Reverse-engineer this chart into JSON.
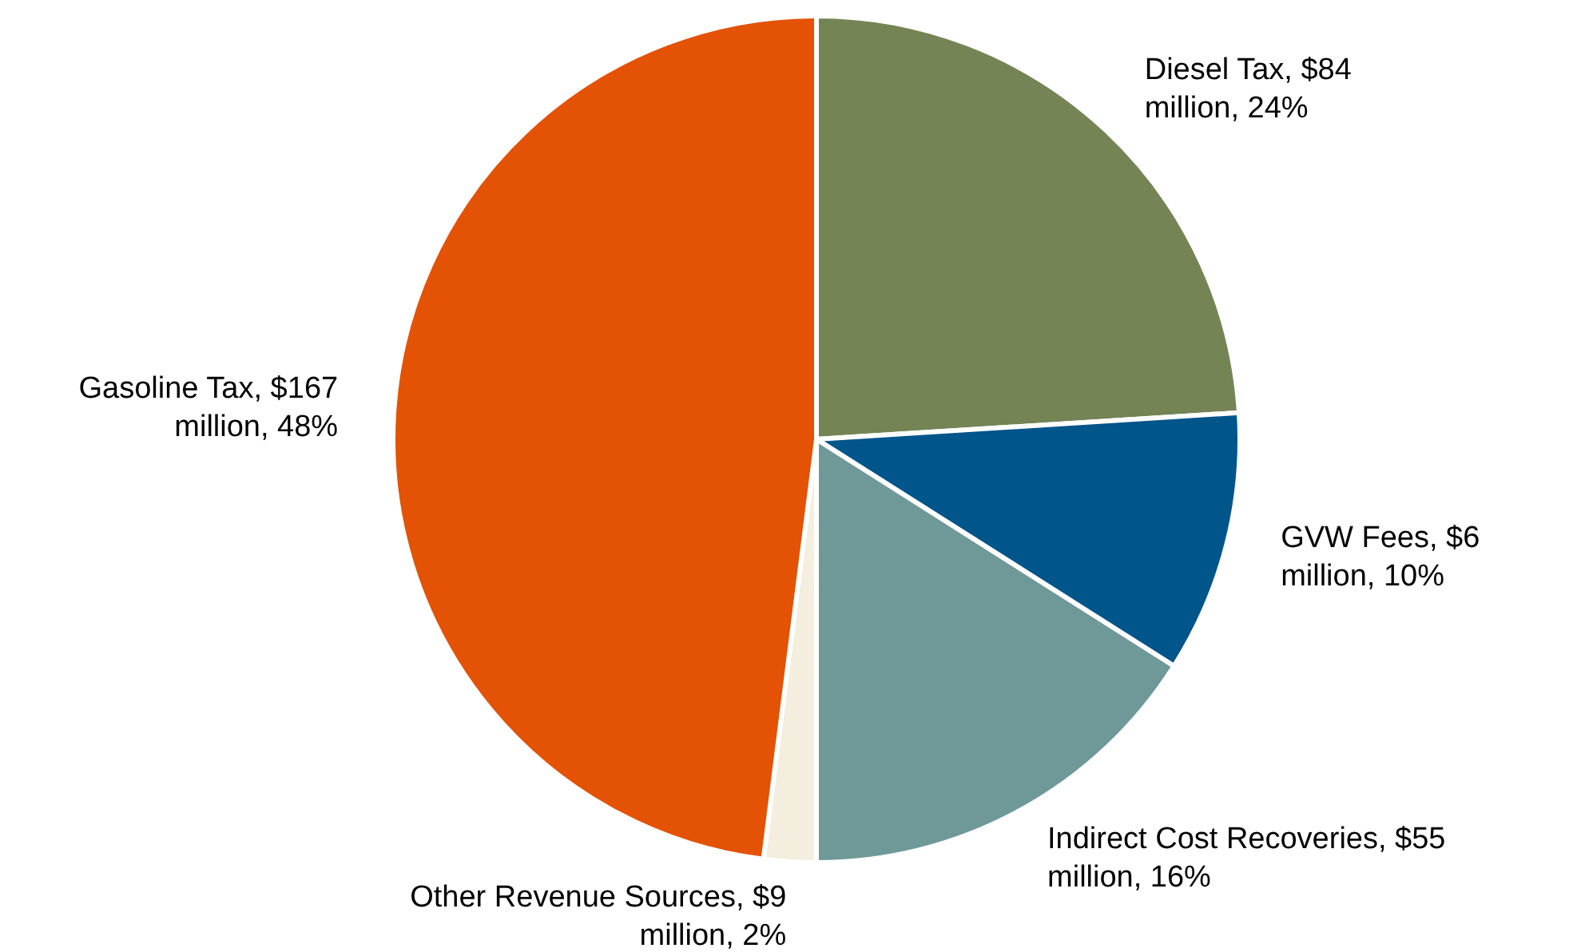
{
  "chart_data": {
    "type": "pie",
    "categories": [
      "Diesel Tax",
      "GVW Fees",
      "Indirect Cost Recoveries",
      "Other Revenue Sources",
      "Gasoline Tax"
    ],
    "values": [
      24,
      10,
      16,
      2,
      48
    ],
    "colors": [
      "#748455",
      "#00558a",
      "#6f9899",
      "#f3eedd",
      "#e35205"
    ],
    "value_labels": [
      ", $84 million, 24%",
      ", $6 million, 10%",
      ", $55 million, 16%",
      ", $9 million, 2%",
      ", $167 million, 48%"
    ]
  }
}
